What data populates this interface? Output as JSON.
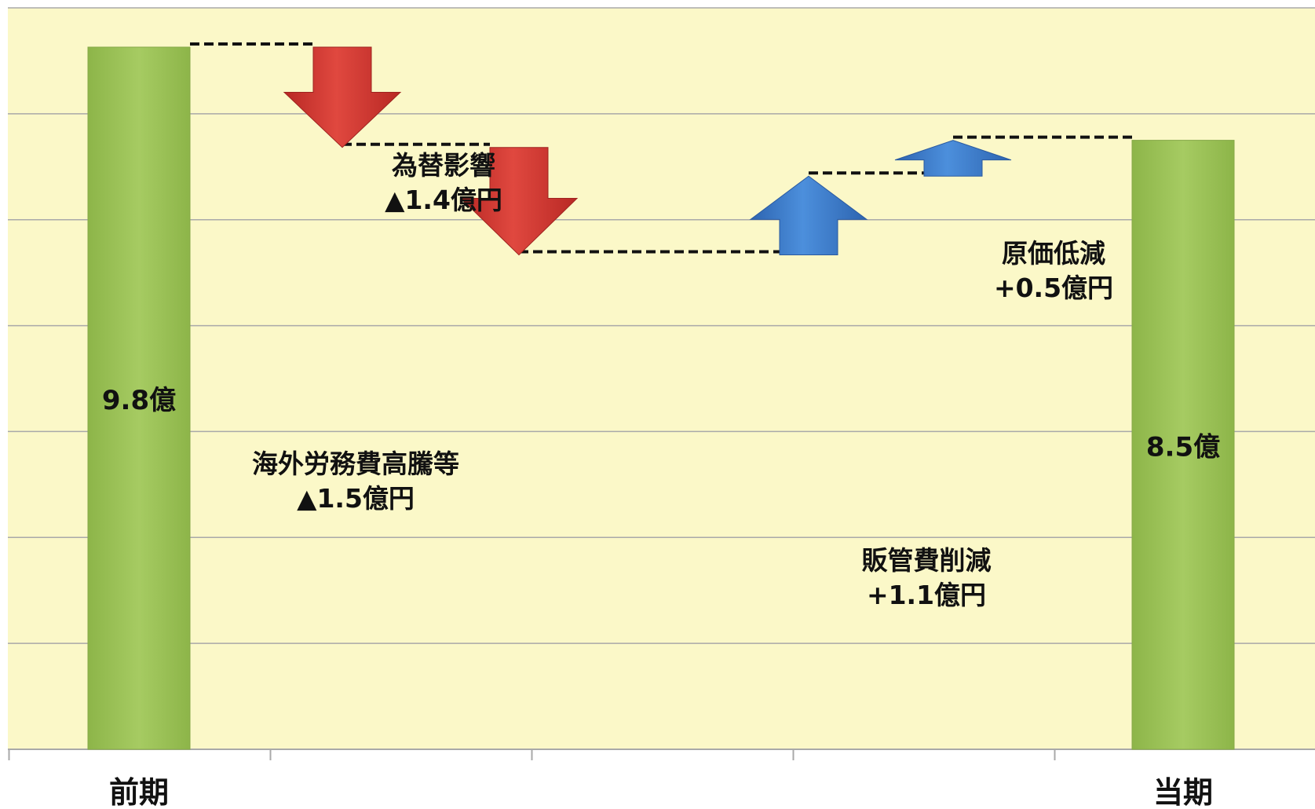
{
  "chart_data": {
    "type": "bar",
    "subtype": "waterfall",
    "title": "",
    "xlabel": "",
    "ylabel": "",
    "ylim": [
      0,
      7
    ],
    "grid": true,
    "legend": "none",
    "categories": [
      "前期",
      "",
      "",
      "",
      "",
      "当期"
    ],
    "totals": [
      {
        "category": "前期",
        "value": 9.8,
        "label": "9.8億"
      },
      {
        "category": "当期",
        "value": 8.5,
        "label": "8.5億"
      }
    ],
    "steps": [
      {
        "label_line1": "為替影響",
        "label_line2": "▲1.4億円",
        "delta": -1.4,
        "from": 9.8,
        "to": 8.4
      },
      {
        "label_line1": "海外労務費高騰等",
        "label_line2": "▲1.5億円",
        "delta": -1.5,
        "from": 8.4,
        "to": 6.9
      },
      {
        "label_line1": "販管費削減",
        "label_line2": "+1.1億円",
        "delta": 1.1,
        "from": 6.9,
        "to": 8.0
      },
      {
        "label_line1": "原価低減",
        "label_line2": "+0.5億円",
        "delta": 0.5,
        "from": 8.0,
        "to": 8.5
      }
    ],
    "colors": {
      "background": "#fbf8c8",
      "total_bar": "#9dc35a",
      "decrease_arrow": "#d63a36",
      "increase_arrow": "#3d7fcf",
      "gridline": "#a9a9a9",
      "connector": "#111111"
    }
  }
}
